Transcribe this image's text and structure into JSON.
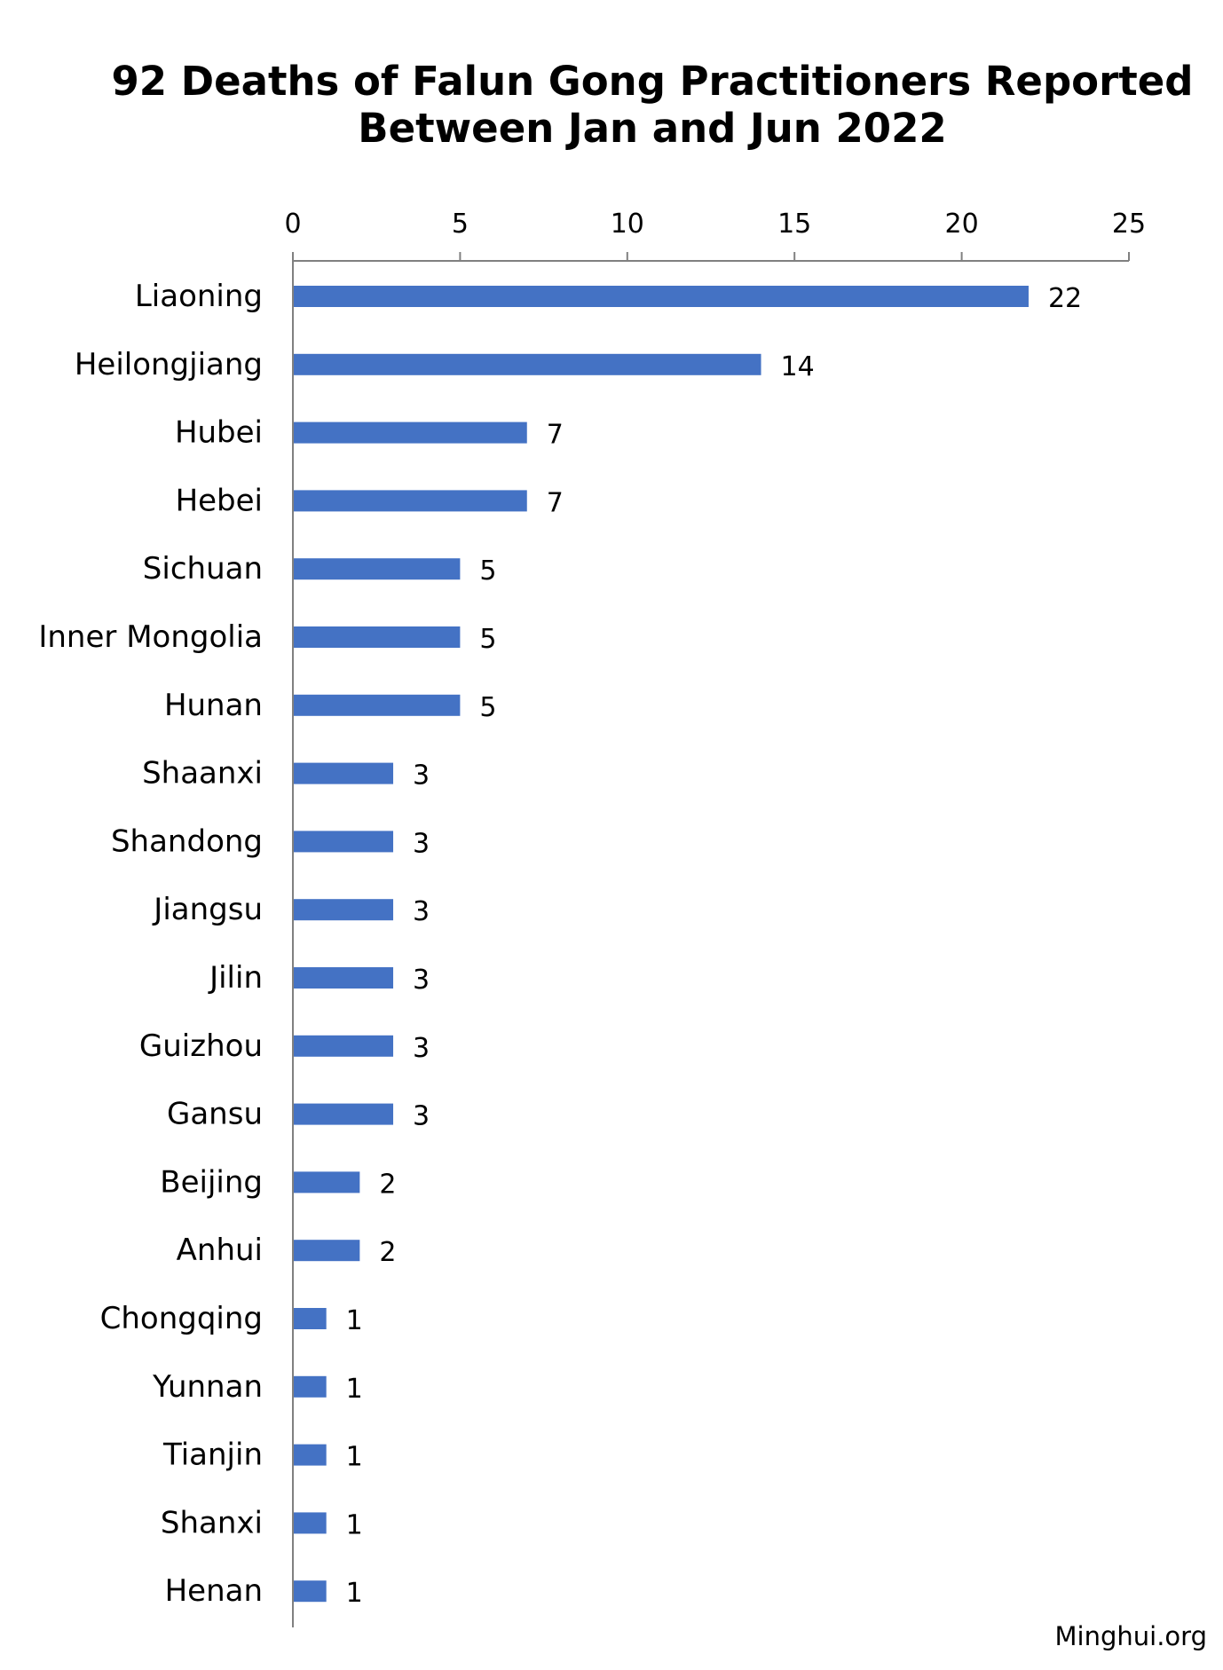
{
  "chart_data": {
    "type": "bar",
    "orientation": "horizontal",
    "title_lines": [
      "92 Deaths of Falun Gong Practitioners Reported",
      "Between Jan and Jun 2022"
    ],
    "categories": [
      "Liaoning",
      "Heilongjiang",
      "Hubei",
      "Hebei",
      "Sichuan",
      "Inner Mongolia",
      "Hunan",
      "Shaanxi",
      "Shandong",
      "Jiangsu",
      "Jilin",
      "Guizhou",
      "Gansu",
      "Beijing",
      "Anhui",
      "Chongqing",
      "Yunnan",
      "Tianjin",
      "Shanxi",
      "Henan"
    ],
    "values": [
      22,
      14,
      7,
      7,
      5,
      5,
      5,
      3,
      3,
      3,
      3,
      3,
      3,
      2,
      2,
      1,
      1,
      1,
      1,
      1
    ],
    "x_ticks": [
      0,
      5,
      10,
      15,
      20,
      25
    ],
    "xlim": [
      0,
      25
    ],
    "axis_position": "top",
    "data_labels": true,
    "grid": false,
    "legend": "none",
    "bar_color": "#4472c4",
    "axis_color": "#808080"
  },
  "source": "Minghui.org"
}
